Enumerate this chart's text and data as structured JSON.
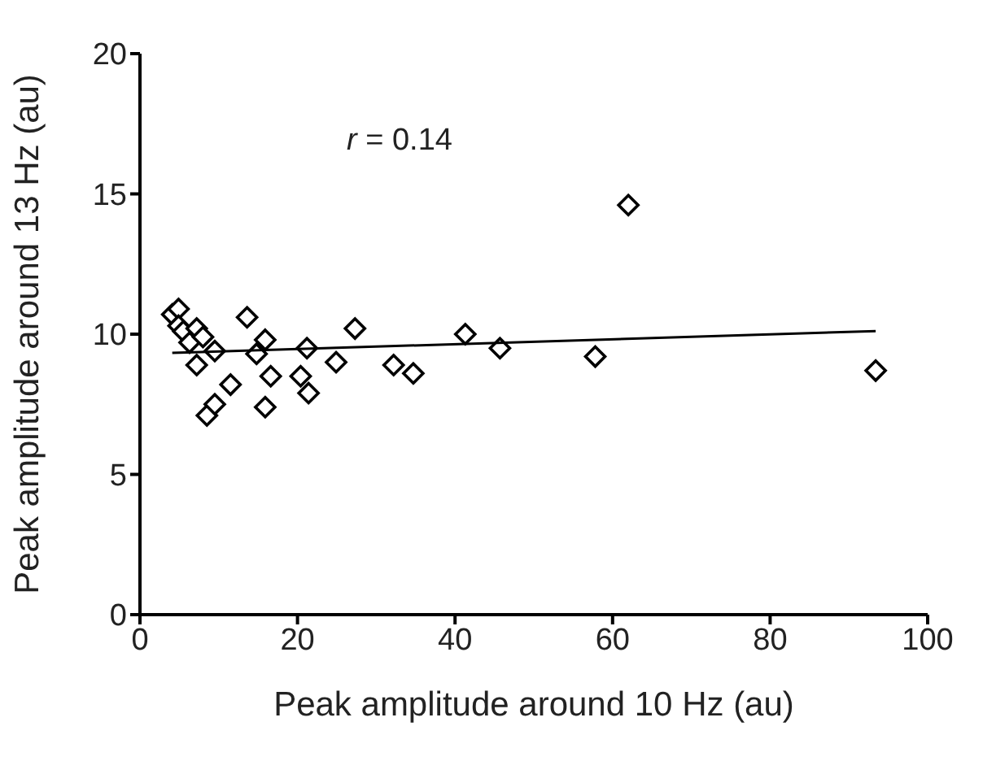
{
  "chart_data": {
    "type": "scatter",
    "xlabel": "Peak amplitude around 10 Hz (au)",
    "ylabel": "Peak amplitude around 13 Hz (au)",
    "annotations": [
      "r = 0.14"
    ],
    "xlim": [
      0,
      100
    ],
    "xticks": [
      0,
      20,
      40,
      60,
      80,
      100
    ],
    "ylim": [
      0,
      20
    ],
    "yticks": [
      0,
      5,
      10,
      15,
      20
    ],
    "marker": "diamond",
    "series": [
      {
        "color": "#000000",
        "x": [
          4.1,
          4.9,
          4.9,
          5.5,
          6.3,
          7.2,
          8.0,
          7.2,
          9.5,
          8.5,
          9.5,
          11.5,
          13.6,
          14.8,
          15.9,
          16.6,
          15.9,
          20.4,
          21.2,
          21.4,
          24.9,
          27.3,
          32.2,
          34.7,
          41.3,
          45.7,
          57.8,
          62.0,
          93.4
        ],
        "values": [
          10.7,
          10.9,
          10.3,
          10.1,
          9.7,
          10.2,
          9.9,
          8.9,
          9.4,
          7.1,
          7.5,
          8.2,
          10.6,
          9.3,
          9.8,
          8.5,
          7.4,
          8.5,
          9.5,
          7.9,
          9.0,
          10.2,
          8.9,
          8.6,
          10.0,
          9.5,
          9.2,
          14.6,
          8.7
        ]
      },
      {
        "type": "line",
        "color": "#000000",
        "marker": "none",
        "line_style": "solid",
        "x": [
          4.1,
          93.4
        ],
        "values": [
          9.33,
          10.11
        ]
      }
    ]
  }
}
